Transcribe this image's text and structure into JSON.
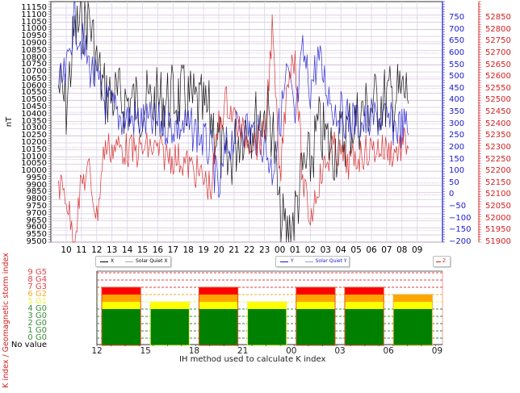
{
  "chart_data": [
    {
      "type": "line",
      "title": "",
      "ylabel": "nT",
      "xlabel": "",
      "x_tick_labels": [
        "10",
        "11",
        "12",
        "13",
        "14",
        "15",
        "16",
        "17",
        "18",
        "19",
        "20",
        "21",
        "22",
        "23",
        "00",
        "01",
        "02",
        "03",
        "04",
        "05",
        "06",
        "07",
        "08",
        "09"
      ],
      "left_axis": {
        "label": "nT",
        "range": [
          9500,
          11150
        ],
        "ticks": [
          9500,
          9550,
          9600,
          9650,
          9700,
          9750,
          9800,
          9850,
          9900,
          9950,
          10000,
          10050,
          10100,
          10150,
          10200,
          10250,
          10300,
          10350,
          10400,
          10450,
          10500,
          10550,
          10600,
          10650,
          10700,
          10750,
          10800,
          10850,
          10900,
          10950,
          11000,
          11050,
          11100,
          11150
        ]
      },
      "right_axis_blue": {
        "range": [
          -200,
          750
        ],
        "ticks": [
          -200,
          -150,
          -100,
          -50,
          0,
          50,
          100,
          150,
          200,
          250,
          300,
          350,
          400,
          450,
          500,
          550,
          600,
          650,
          700,
          750
        ],
        "color": "#1a1acc"
      },
      "right_axis_red": {
        "range": [
          51900,
          52850
        ],
        "ticks": [
          51900,
          51950,
          52000,
          52050,
          52100,
          52150,
          52200,
          52250,
          52300,
          52350,
          52400,
          52450,
          52500,
          52550,
          52600,
          52650,
          52700,
          52750,
          52800,
          52850
        ],
        "color": "#d42020"
      },
      "series": [
        {
          "name": "X",
          "color": "#000000",
          "axis": "left",
          "x_hours": [
            0,
            0.5,
            1,
            1.5,
            2,
            2.5,
            3,
            4,
            5,
            6,
            7,
            8,
            9,
            10,
            10.5,
            11,
            12,
            13,
            13.5,
            14,
            14.5,
            15,
            15.5,
            16,
            16.5,
            17,
            18,
            19,
            20,
            21,
            22,
            23
          ],
          "values": [
            10600,
            10450,
            10950,
            11050,
            11100,
            10750,
            10550,
            10500,
            10480,
            10470,
            10500,
            10520,
            10460,
            10380,
            10200,
            10000,
            10310,
            10350,
            10400,
            10340,
            9650,
            9550,
            9700,
            10000,
            10050,
            10300,
            10150,
            10300,
            10420,
            10500,
            10520,
            10560
          ]
        },
        {
          "name": "Solar Quiet X",
          "color": "#aaaaaa",
          "axis": "left",
          "values": []
        },
        {
          "name": "Y",
          "color": "#1a1acc",
          "axis": "right_blue",
          "x_hours": [
            0,
            0.5,
            1,
            1.5,
            2,
            3,
            4,
            5,
            6,
            7,
            8,
            9,
            10,
            10.5,
            11,
            12,
            13,
            13.5,
            14,
            15,
            15.5,
            16,
            16.5,
            17,
            18,
            19,
            20,
            21,
            22,
            23
          ],
          "values": [
            450,
            500,
            750,
            650,
            550,
            400,
            330,
            320,
            300,
            300,
            290,
            270,
            180,
            0,
            200,
            300,
            250,
            220,
            100,
            520,
            300,
            600,
            450,
            580,
            370,
            320,
            300,
            330,
            290,
            280
          ]
        },
        {
          "name": "Solar Quiet Y",
          "color": "#9999ee",
          "axis": "right_blue",
          "values": []
        },
        {
          "name": "Z",
          "color": "#d42020",
          "axis": "right_red",
          "x_hours": [
            0,
            0.5,
            1,
            1.5,
            2,
            2.5,
            3,
            4,
            5,
            6,
            7,
            8,
            9,
            10,
            10.5,
            11,
            12,
            13,
            13.5,
            14,
            14.5,
            15,
            15.5,
            16,
            16.5,
            17,
            18,
            19,
            20,
            21,
            22,
            23
          ],
          "values": [
            52150,
            52100,
            51900,
            52150,
            52200,
            52000,
            52300,
            52300,
            52280,
            52300,
            52270,
            52250,
            52200,
            52130,
            52400,
            52500,
            52360,
            52320,
            52350,
            52800,
            52150,
            52600,
            52700,
            52150,
            52000,
            52150,
            52300,
            52230,
            52280,
            52300,
            52280,
            52330
          ]
        }
      ],
      "legend": [
        "X",
        "Solar Quiet X",
        "Y",
        "Solar Quiet Y",
        "Z"
      ],
      "grid": true
    },
    {
      "type": "bar",
      "title": "",
      "xlabel": "IH method used to calculate K index",
      "ylabel": "K index / Geomagnetic storm index",
      "x_tick_labels": [
        "12",
        "15",
        "18",
        "21",
        "00",
        "03",
        "06",
        "09"
      ],
      "y_tick_labels": [
        "No value",
        "0 G0",
        "1 G0",
        "2 G0",
        "3 G0",
        "4 G0",
        "5 G1",
        "6 G2",
        "7 G3",
        "8 G4",
        "9 G5"
      ],
      "categories": [
        "12-15",
        "15-18",
        "18-21",
        "21-00",
        "00-03",
        "03-06",
        "06-09"
      ],
      "values": [
        7,
        5,
        7,
        5,
        7,
        7,
        6
      ],
      "ylim": [
        -1,
        9
      ],
      "level_colors": {
        "G0": "#008000",
        "G1": "#ffff00",
        "G2": "#ffa500",
        "G3": "#ff0000"
      }
    }
  ],
  "upper": {
    "ylabel": "nT",
    "legend": {
      "x": "X",
      "sqx": "Solar Quiet X",
      "y": "Y",
      "sqy": "Solar Quiet Y",
      "z": "Z"
    }
  },
  "lower": {
    "xlabel": "IH method used to calculate K index",
    "ylabel": "K index / Geomagnetic storm index",
    "levels": [
      {
        "label": "9 G5",
        "color": "#e0404a"
      },
      {
        "label": "8 G4",
        "color": "#e0404a"
      },
      {
        "label": "7 G3",
        "color": "#e0404a"
      },
      {
        "label": "6 G2",
        "color": "#f0a830"
      },
      {
        "label": "5 G1",
        "color": "#f0f040"
      },
      {
        "label": "4 G0",
        "color": "#3a8a3a"
      },
      {
        "label": "3 G0",
        "color": "#3a8a3a"
      },
      {
        "label": "2 G0",
        "color": "#3a8a3a"
      },
      {
        "label": "1 G0",
        "color": "#3a8a3a"
      },
      {
        "label": "0 G0",
        "color": "#3a8a3a"
      },
      {
        "label": "No value",
        "color": "#000000"
      }
    ]
  }
}
